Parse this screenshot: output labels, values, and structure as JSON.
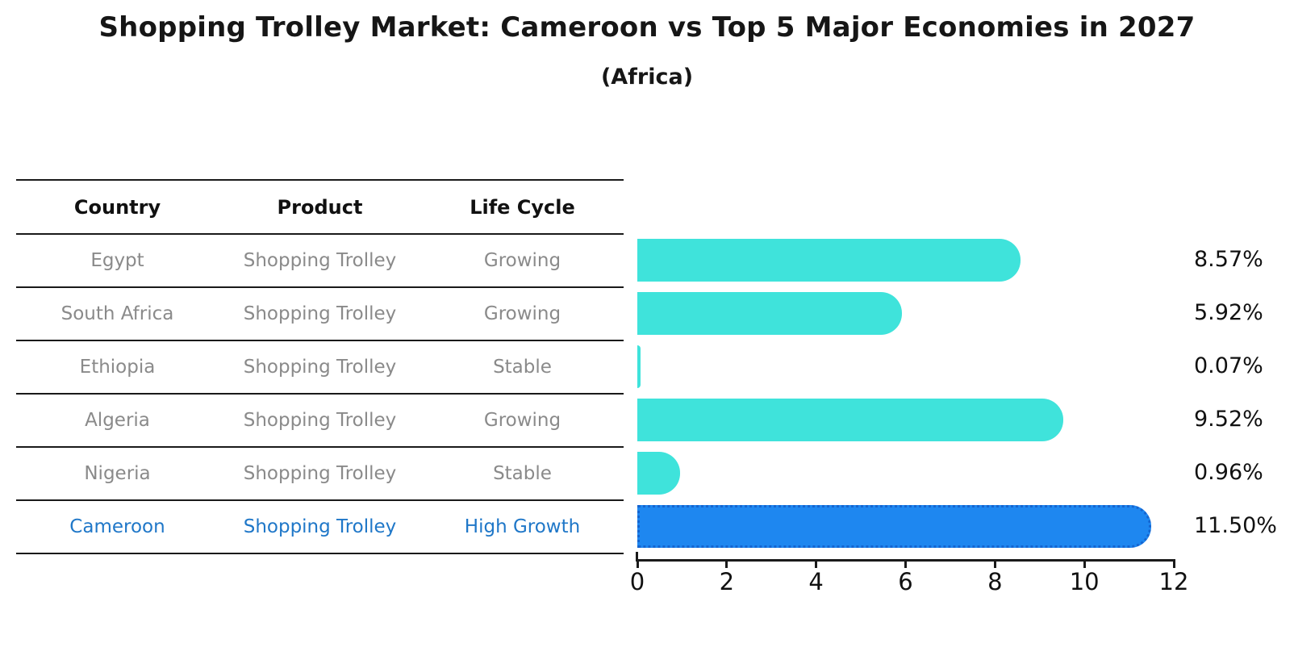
{
  "title": "Shopping Trolley Market: Cameroon vs Top 5 Major Economies in 2027",
  "subtitle": "(Africa)",
  "table": {
    "headers": [
      "Country",
      "Product",
      "Life Cycle"
    ],
    "rows": [
      {
        "country": "Egypt",
        "product": "Shopping Trolley",
        "life_cycle": "Growing"
      },
      {
        "country": "South Africa",
        "product": "Shopping Trolley",
        "life_cycle": "Growing"
      },
      {
        "country": "Ethiopia",
        "product": "Shopping Trolley",
        "life_cycle": "Stable"
      },
      {
        "country": "Algeria",
        "product": "Shopping Trolley",
        "life_cycle": "Growing"
      },
      {
        "country": "Nigeria",
        "product": "Shopping Trolley",
        "life_cycle": "Stable"
      },
      {
        "country": "Cameroon",
        "product": "Shopping Trolley",
        "life_cycle": "High Growth"
      }
    ],
    "highlight_row": "Cameroon"
  },
  "chart_data": {
    "type": "bar",
    "orientation": "horizontal",
    "categories": [
      "Egypt",
      "South Africa",
      "Ethiopia",
      "Algeria",
      "Nigeria",
      "Cameroon"
    ],
    "values": [
      8.57,
      5.92,
      0.07,
      9.52,
      0.96,
      11.5
    ],
    "value_labels": [
      "8.57%",
      "5.92%",
      "0.07%",
      "9.52%",
      "0.96%",
      "11.50%"
    ],
    "title": "",
    "xlabel": "",
    "ylabel": "",
    "xlim": [
      0,
      12
    ],
    "x_ticks": [
      0,
      2,
      4,
      6,
      8,
      10,
      12
    ],
    "grid": false,
    "legend": false,
    "highlight_index": 5
  },
  "colors": {
    "bar_default": "#3fe3db",
    "bar_highlight": "#1e87f0",
    "highlight_border": "#1565d0",
    "highlight_text": "#1f77c8",
    "muted_text": "#8a8a8a",
    "text": "#111111"
  }
}
